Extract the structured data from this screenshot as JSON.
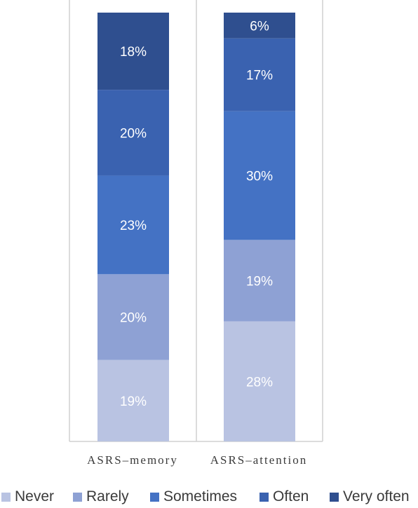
{
  "chart_data": {
    "type": "bar",
    "stacked": true,
    "categories": [
      "ASRS–memory",
      "ASRS–attention"
    ],
    "series": [
      {
        "name": "Never",
        "color": "#B9C3E2",
        "values": [
          19,
          28
        ],
        "labels": [
          "19%",
          "28%"
        ]
      },
      {
        "name": "Rarely",
        "color": "#8EA1D4",
        "values": [
          20,
          19
        ],
        "labels": [
          "20%",
          "19%"
        ]
      },
      {
        "name": "Sometimes",
        "color": "#4472C4",
        "values": [
          23,
          30
        ],
        "labels": [
          "23%",
          "30%"
        ]
      },
      {
        "name": "Often",
        "color": "#3A62B0",
        "values": [
          20,
          17
        ],
        "labels": [
          "20%",
          "17%"
        ]
      },
      {
        "name": "Very often",
        "color": "#2F4F8F",
        "values": [
          18,
          6
        ],
        "labels": [
          "18%",
          "6%"
        ]
      }
    ],
    "legend": "bottom",
    "grid": false
  }
}
